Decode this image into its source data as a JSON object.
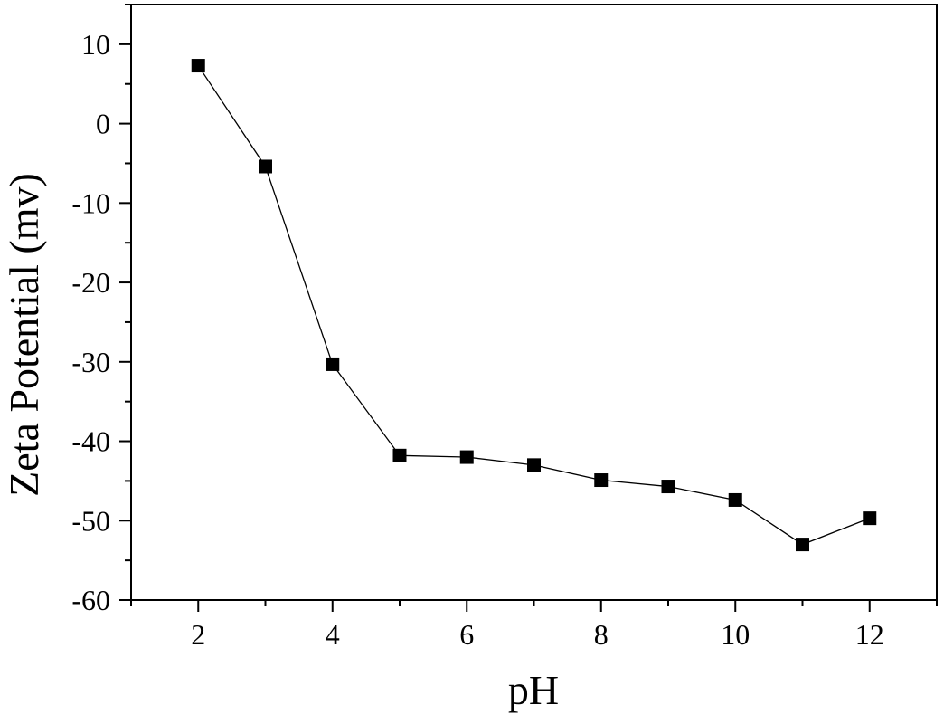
{
  "chart_data": {
    "type": "line",
    "title": "",
    "xlabel": "pH",
    "ylabel": "Zeta Potential (mv)",
    "xlim": [
      1,
      13
    ],
    "ylim": [
      -60,
      15
    ],
    "xticks": [
      2,
      4,
      6,
      8,
      10,
      12
    ],
    "yticks": [
      -60,
      -50,
      -40,
      -30,
      -20,
      -10,
      0,
      10
    ],
    "grid": false,
    "marker": "square",
    "series": [
      {
        "x": [
          2,
          3,
          4,
          5,
          6,
          7,
          8,
          9,
          10,
          11,
          12
        ],
        "values": [
          7.3,
          -5.4,
          -30.3,
          -41.8,
          -42.0,
          -43.0,
          -44.9,
          -45.7,
          -47.4,
          -53.0,
          -49.7
        ],
        "color": "#000000"
      }
    ]
  }
}
